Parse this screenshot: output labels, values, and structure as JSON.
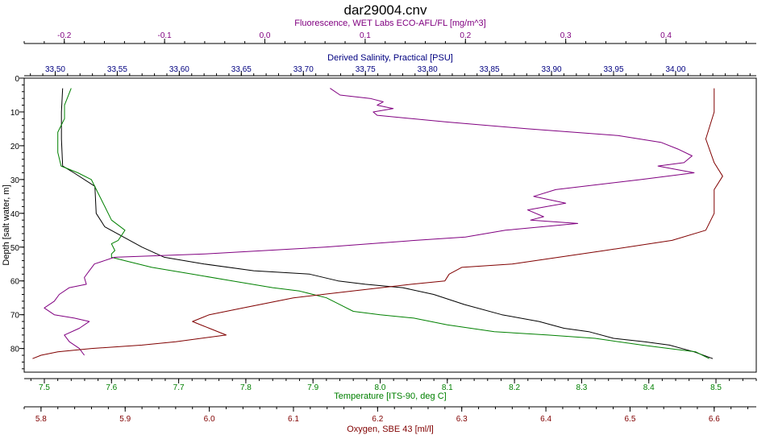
{
  "chart_data": {
    "type": "line",
    "title": "dar29004.cnv",
    "grid": false,
    "y_axis": {
      "label": "Depth [salt water, m]",
      "range": [
        0,
        87
      ],
      "inverted": true,
      "ticks": [
        0,
        10,
        20,
        30,
        40,
        50,
        60,
        70,
        80
      ]
    },
    "x_axes": [
      {
        "id": "fluorescence",
        "label": "Fluorescence, WET Labs ECO-AFL/FL [mg/m^3]",
        "position": "top",
        "color": "#800080",
        "range": [
          -0.24,
          0.49
        ],
        "ticks": [
          "-0.2",
          "-0.1",
          "0.0",
          "0.1",
          "0.2",
          "0.3",
          "0.4"
        ]
      },
      {
        "id": "salinity",
        "label": "Derived Salinity, Practical [PSU]",
        "position": "top",
        "color": "#000080",
        "range": [
          33.475,
          34.065
        ],
        "ticks": [
          "33.50",
          "33.55",
          "33.60",
          "33.65",
          "33.70",
          "33.75",
          "33.80",
          "33.85",
          "33.90",
          "33.95",
          "34.00"
        ]
      },
      {
        "id": "temperature",
        "label": "Temperature [ITS-90, deg C]",
        "position": "bottom",
        "color": "#008000",
        "range": [
          7.47,
          8.56
        ],
        "ticks": [
          "7.5",
          "7.6",
          "7.7",
          "7.8",
          "7.9",
          "8.0",
          "8.1",
          "8.2",
          "8.3",
          "8.4",
          "8.5"
        ]
      },
      {
        "id": "oxygen",
        "label": "Oxygen, SBE 43 [ml/l]",
        "position": "bottom",
        "color": "#800000",
        "range": [
          5.78,
          6.65
        ],
        "ticks": [
          "5.8",
          "5.9",
          "6.0",
          "6.1",
          "6.2",
          "6.3",
          "6.4",
          "6.5",
          "6.6"
        ]
      }
    ],
    "series": [
      {
        "axis": "salinity",
        "color": "#000000",
        "points": [
          [
            33.506,
            3
          ],
          [
            33.505,
            10
          ],
          [
            33.505,
            18
          ],
          [
            33.506,
            26
          ],
          [
            33.515,
            28
          ],
          [
            33.532,
            32
          ],
          [
            33.533,
            40
          ],
          [
            33.54,
            44
          ],
          [
            33.555,
            47
          ],
          [
            33.57,
            50
          ],
          [
            33.588,
            53
          ],
          [
            33.62,
            55
          ],
          [
            33.66,
            57
          ],
          [
            33.705,
            58
          ],
          [
            33.728,
            60
          ],
          [
            33.75,
            61
          ],
          [
            33.78,
            62
          ],
          [
            33.805,
            64
          ],
          [
            33.83,
            67
          ],
          [
            33.86,
            70
          ],
          [
            33.89,
            72
          ],
          [
            33.91,
            74
          ],
          [
            33.93,
            75
          ],
          [
            33.95,
            77
          ],
          [
            33.975,
            78
          ],
          [
            33.995,
            79
          ],
          [
            34.015,
            81
          ],
          [
            34.03,
            83
          ]
        ]
      },
      {
        "axis": "temperature",
        "color": "#008000",
        "points": [
          [
            7.54,
            3
          ],
          [
            7.53,
            8
          ],
          [
            7.53,
            12
          ],
          [
            7.52,
            16
          ],
          [
            7.52,
            22
          ],
          [
            7.525,
            26
          ],
          [
            7.55,
            28
          ],
          [
            7.57,
            30
          ],
          [
            7.58,
            34
          ],
          [
            7.59,
            38
          ],
          [
            7.6,
            42
          ],
          [
            7.62,
            45
          ],
          [
            7.61,
            48
          ],
          [
            7.6,
            49
          ],
          [
            7.605,
            51
          ],
          [
            7.6,
            52
          ],
          [
            7.6,
            53
          ],
          [
            7.62,
            54
          ],
          [
            7.66,
            56
          ],
          [
            7.72,
            58
          ],
          [
            7.78,
            60
          ],
          [
            7.84,
            62
          ],
          [
            7.88,
            63
          ],
          [
            7.92,
            65
          ],
          [
            7.94,
            67
          ],
          [
            7.96,
            69
          ],
          [
            8.0,
            70
          ],
          [
            8.05,
            71
          ],
          [
            8.1,
            73
          ],
          [
            8.17,
            75
          ],
          [
            8.25,
            76
          ],
          [
            8.32,
            77
          ],
          [
            8.39,
            79
          ],
          [
            8.43,
            80
          ],
          [
            8.47,
            81
          ],
          [
            8.49,
            83
          ]
        ]
      },
      {
        "axis": "fluorescence",
        "color": "#800080",
        "points": [
          [
            0.065,
            3
          ],
          [
            0.075,
            5
          ],
          [
            0.105,
            6
          ],
          [
            0.118,
            7
          ],
          [
            0.112,
            8
          ],
          [
            0.128,
            9
          ],
          [
            0.108,
            10
          ],
          [
            0.112,
            11
          ],
          [
            0.182,
            13
          ],
          [
            0.262,
            15
          ],
          [
            0.352,
            17
          ],
          [
            0.395,
            19
          ],
          [
            0.412,
            21
          ],
          [
            0.426,
            23
          ],
          [
            0.418,
            25
          ],
          [
            0.392,
            26
          ],
          [
            0.428,
            28
          ],
          [
            0.375,
            30
          ],
          [
            0.29,
            33
          ],
          [
            0.268,
            35
          ],
          [
            0.3,
            37
          ],
          [
            0.262,
            39
          ],
          [
            0.278,
            41
          ],
          [
            0.265,
            42
          ],
          [
            0.312,
            43
          ],
          [
            0.24,
            45
          ],
          [
            0.2,
            47
          ],
          [
            0.15,
            48
          ],
          [
            0.06,
            50
          ],
          [
            -0.06,
            52
          ],
          [
            -0.15,
            53
          ],
          [
            -0.17,
            55
          ],
          [
            -0.175,
            57
          ],
          [
            -0.18,
            59
          ],
          [
            -0.178,
            61
          ],
          [
            -0.195,
            62
          ],
          [
            -0.205,
            64
          ],
          [
            -0.21,
            66
          ],
          [
            -0.22,
            68
          ],
          [
            -0.21,
            70
          ],
          [
            -0.19,
            71
          ],
          [
            -0.175,
            72
          ],
          [
            -0.185,
            74
          ],
          [
            -0.2,
            76
          ],
          [
            -0.195,
            78
          ],
          [
            -0.185,
            80
          ],
          [
            -0.18,
            82
          ]
        ]
      },
      {
        "axis": "oxygen",
        "color": "#800000",
        "points": [
          [
            6.6,
            3
          ],
          [
            6.6,
            10
          ],
          [
            6.59,
            18
          ],
          [
            6.6,
            25
          ],
          [
            6.61,
            29
          ],
          [
            6.6,
            33
          ],
          [
            6.6,
            40
          ],
          [
            6.59,
            45
          ],
          [
            6.55,
            48
          ],
          [
            6.47,
            51
          ],
          [
            6.36,
            55
          ],
          [
            6.3,
            56
          ],
          [
            6.285,
            58
          ],
          [
            6.28,
            60
          ],
          [
            6.24,
            61
          ],
          [
            6.17,
            63
          ],
          [
            6.1,
            65
          ],
          [
            6.04,
            68
          ],
          [
            6.0,
            70
          ],
          [
            5.98,
            72
          ],
          [
            6.0,
            74
          ],
          [
            6.02,
            76
          ],
          [
            5.96,
            78
          ],
          [
            5.92,
            79
          ],
          [
            5.86,
            80
          ],
          [
            5.82,
            81
          ],
          [
            5.8,
            82
          ],
          [
            5.79,
            83
          ]
        ]
      }
    ]
  }
}
